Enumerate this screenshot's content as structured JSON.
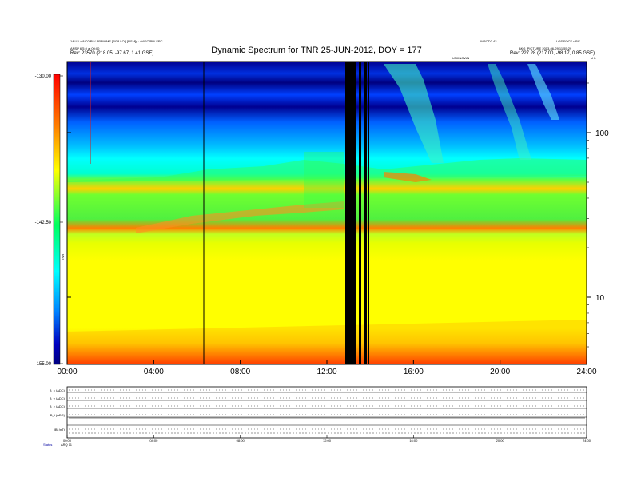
{
  "title": "Dynamic Spectrum for TNR 25-JUN-2012, DOY = 177",
  "header": {
    "left_line1": "14 U3 > 8/C0/PU/.SPN/OMF [RG8 LOI] [RSM]y : 04/FC/PU/.SPC",
    "left_line2": "ANSP 6/5.0 at 00:00",
    "left_line3": "Rev:  23570 (218.05, -97.67, 1.41 GSE)",
    "mid_right_label": "WROD2.42",
    "right_line1": "LOS/FOCE v.BV",
    "right_line2": "BKG_PICTURE 2013-06-29 11:55:29",
    "right_line3": "Rev:  227.28 (217.00, -98.17, 0.85 GSE)",
    "center_small": "UNKNOWN",
    "corner_mark": "kHz"
  },
  "chart_data": {
    "type": "heatmap",
    "title": "Dynamic Spectrum for TNR 25-JUN-2012, DOY = 177",
    "x_ticks": [
      "00:00",
      "04:00",
      "08:00",
      "12:00",
      "16:00",
      "20:00",
      "24:00"
    ],
    "y_axis": {
      "scale": "log",
      "ticks": [
        "10",
        "100"
      ]
    },
    "colorbar": {
      "ticks": [
        "-130.00",
        "-142.50",
        "-155.00"
      ],
      "label": "TNR",
      "colors": [
        "#ff0000",
        "#ff8000",
        "#ffff00",
        "#00ff60",
        "#00ffff",
        "#0080ff",
        "#0000c0",
        "#000080"
      ]
    }
  },
  "panels": {
    "labels": [
      "B_x (ADC)",
      "B_y (ADC)",
      "B_z (ADC)",
      "B_t (ADC)",
      "|B| (nT)"
    ],
    "x_ticks": [
      "00:00",
      "04:00",
      "08:00",
      "12:00",
      "16:00",
      "20:00",
      "24:00"
    ],
    "footer_left": "Status",
    "footer_codes": "ARQ 11"
  }
}
